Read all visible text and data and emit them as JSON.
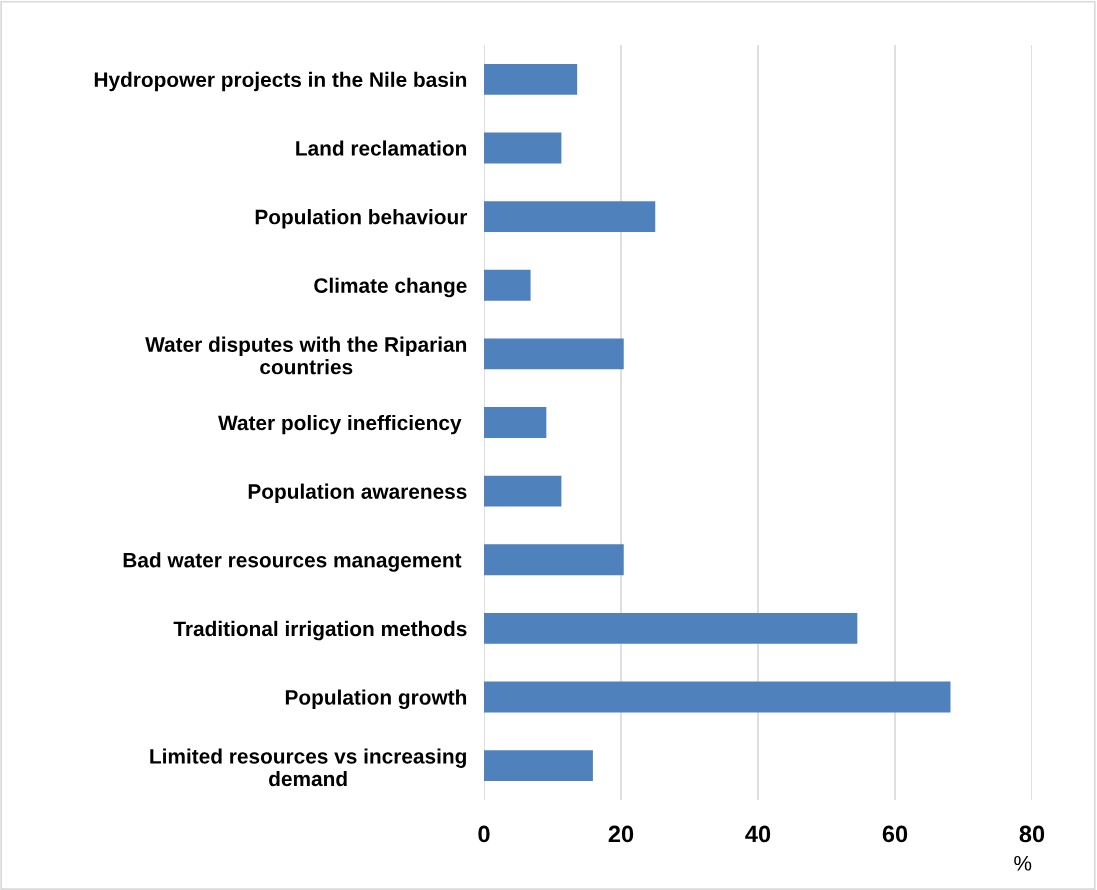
{
  "chart_data": {
    "type": "bar",
    "orientation": "horizontal",
    "xlabel": "%",
    "categories": [
      "Hydropower projects in the Nile basin",
      "Land reclamation",
      "Population behaviour",
      "Climate change",
      "Water disputes with the Riparian\ncountries",
      "Water policy inefficiency ",
      "Population awareness",
      "Bad water resources management ",
      "Traditional irrigation methods",
      "Population growth",
      "Limited resources vs increasing\ndemand"
    ],
    "values": [
      13.6,
      11.3,
      25.0,
      6.8,
      20.4,
      9.1,
      11.3,
      20.4,
      54.5,
      68.1,
      15.9
    ],
    "color": "#4f81bd",
    "xlim": [
      0,
      80
    ],
    "xticks": [
      0,
      20,
      40,
      60,
      80
    ],
    "grid": "x",
    "legend": false
  }
}
